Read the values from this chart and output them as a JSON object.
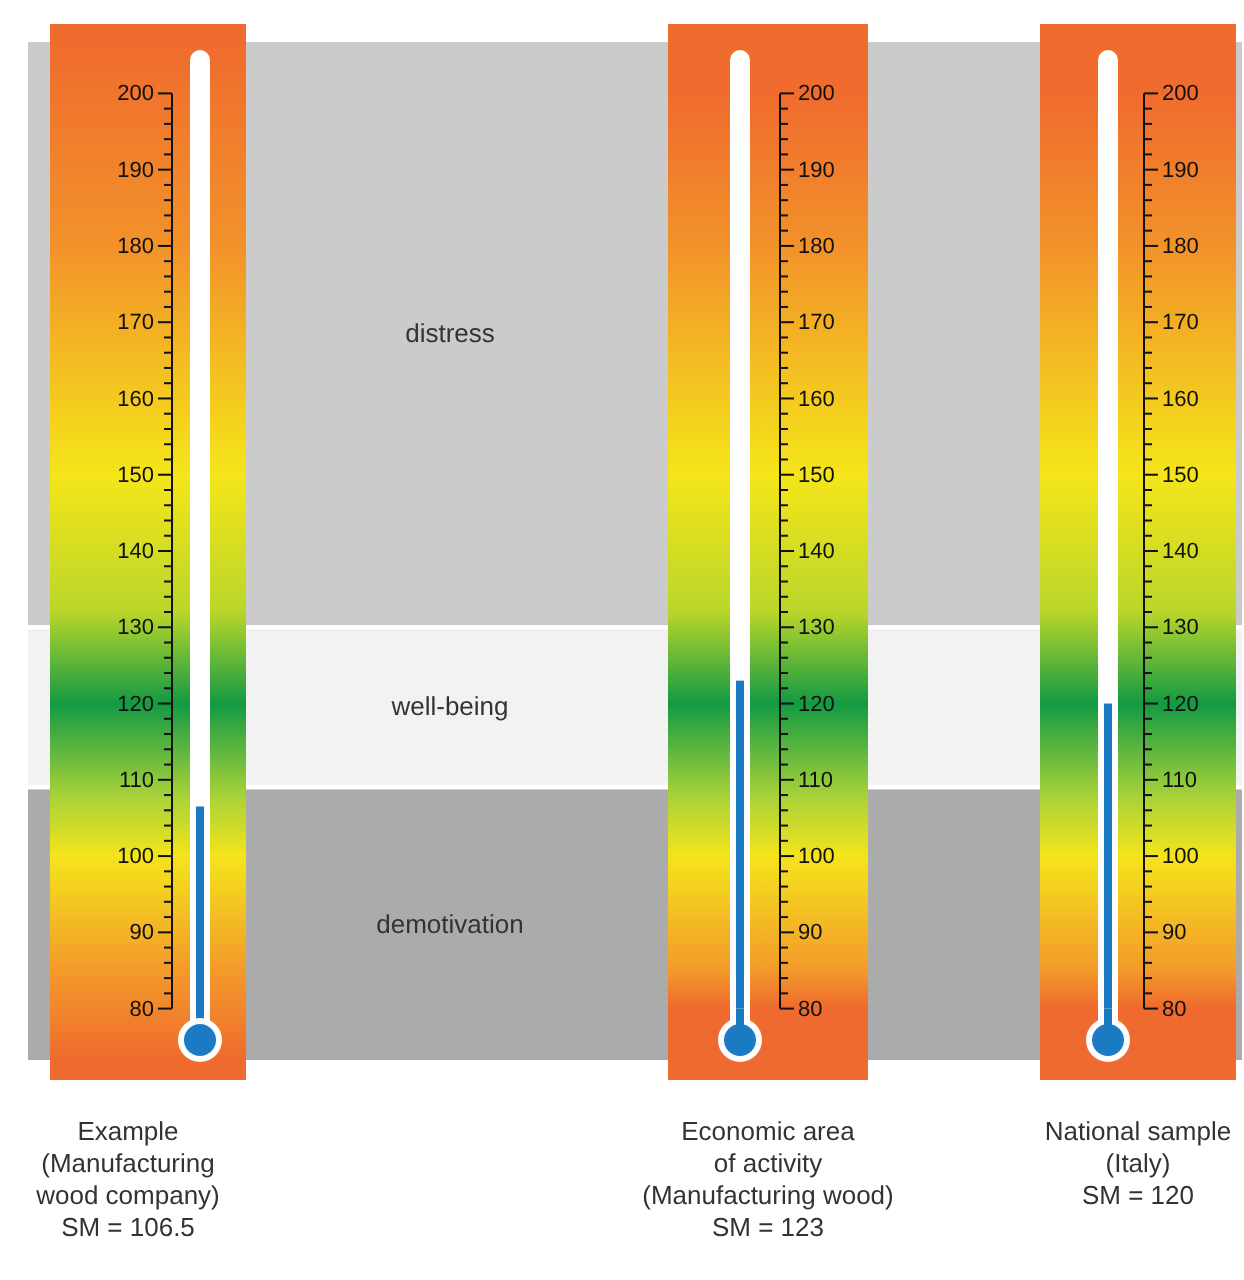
{
  "chart_data": [
    {
      "type": "bar",
      "categories": [
        "Example\n(Manufacturing\nwood company)\nSM = 106.5"
      ],
      "values": [
        106.5
      ],
      "color": "#1a7bc4",
      "ylim": [
        73,
        207
      ],
      "yticks": [
        80,
        90,
        100,
        110,
        120,
        130,
        140,
        150,
        160,
        170,
        180,
        190,
        200
      ],
      "bands": [
        {
          "axis": "y",
          "from": 130,
          "to": 207,
          "label": "distress",
          "color": "#cbcbcb"
        },
        {
          "axis": "y",
          "from": 109,
          "to": 130,
          "label": "well-being",
          "color": "#f2f2f2"
        },
        {
          "axis": "y",
          "from": 73,
          "to": 109,
          "label": "demotivation",
          "color": "#ababab"
        }
      ]
    },
    {
      "type": "bar",
      "categories": [
        "Economic area\nof activity\n(Manufacturing wood)\nSM = 123"
      ],
      "values": [
        123
      ],
      "color": "#1a7bc4",
      "ylim": [
        80,
        200
      ],
      "yticks": [
        80,
        90,
        100,
        110,
        120,
        130,
        140,
        150,
        160,
        170,
        180,
        190,
        200
      ]
    },
    {
      "type": "bar",
      "categories": [
        "National sample\n(Italy)\nSM = 120"
      ],
      "values": [
        120
      ],
      "color": "#1a7bc4",
      "ylim": [
        80,
        200
      ],
      "yticks": [
        80,
        90,
        100,
        110,
        120,
        130,
        140,
        150,
        160,
        170,
        180,
        190,
        200
      ]
    }
  ]
}
